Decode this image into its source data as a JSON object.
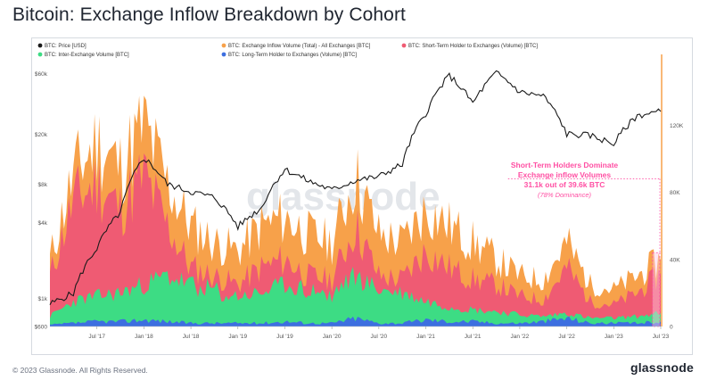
{
  "page": {
    "title": "Bitcoin: Exchange Inflow Breakdown by Cohort",
    "copyright": "© 2023 Glassnode. All Rights Reserved.",
    "brand": "glassnode",
    "watermark": "glassnode"
  },
  "colors": {
    "price": "#1a1a1a",
    "total": "#f7a14a",
    "sth": "#ef5b73",
    "inter": "#3ddc84",
    "lth": "#3d6fe0",
    "highlight": "#ff4fa3",
    "highlight_fill": "#ffc8e3"
  },
  "chart_data": {
    "type": "area",
    "title": "Bitcoin: Exchange Inflow Breakdown by Cohort",
    "legend": [
      {
        "key": "price",
        "label": "BTC: Price [USD]"
      },
      {
        "key": "total",
        "label": "BTC: Exchange Inflow Volume (Total) - All Exchanges [BTC]"
      },
      {
        "key": "sth",
        "label": "BTC: Short-Term Holder to Exchanges (Volume) [BTC]"
      },
      {
        "key": "inter",
        "label": "BTC: Inter-Exchange Volume [BTC]"
      },
      {
        "key": "lth",
        "label": "BTC: Long-Term Holder to Exchanges (Volume) [BTC]"
      }
    ],
    "x_tick_labels": [
      "Jul '17",
      "Jan '18",
      "Jul '18",
      "Jan '19",
      "Jul '19",
      "Jan '20",
      "Jul '20",
      "Jan '21",
      "Jul '21",
      "Jan '22",
      "Jul '22",
      "Jan '23",
      "Jul '23"
    ],
    "x_range": [
      "2017-01",
      "2023-08"
    ],
    "y_left": {
      "scale": "log",
      "range": [
        600,
        80000
      ],
      "ticks": [
        600,
        1000,
        4000,
        8000,
        20000,
        60000
      ],
      "tick_labels": [
        "$600",
        "$1k",
        "$4k",
        "$8k",
        "$20k",
        "$60k"
      ]
    },
    "y_right": {
      "scale": "linear",
      "range": [
        0,
        160000
      ],
      "ticks": [
        0,
        40000,
        80000,
        120000
      ],
      "tick_labels": [
        "0",
        "40K",
        "80K",
        "120K"
      ]
    },
    "x": [
      "2017-01",
      "2017-04",
      "2017-07",
      "2017-10",
      "2018-01",
      "2018-04",
      "2018-07",
      "2018-10",
      "2019-01",
      "2019-04",
      "2019-07",
      "2019-10",
      "2020-01",
      "2020-04",
      "2020-07",
      "2020-10",
      "2021-01",
      "2021-04",
      "2021-07",
      "2021-10",
      "2022-01",
      "2022-04",
      "2022-07",
      "2022-10",
      "2023-01",
      "2023-04",
      "2023-07"
    ],
    "series": [
      {
        "name": "BTC: Price [USD]",
        "key": "price",
        "axis": "left",
        "values": [
          900,
          1100,
          2500,
          4800,
          13000,
          8000,
          7000,
          6300,
          3700,
          5200,
          10500,
          8500,
          7200,
          8600,
          9200,
          11500,
          29000,
          58000,
          35000,
          61000,
          43000,
          40000,
          20000,
          19500,
          16700,
          28000,
          30200
        ]
      },
      {
        "name": "BTC: Exchange Inflow Volume (Total) - All Exchanges [BTC]",
        "key": "total",
        "axis": "right",
        "values": [
          40000,
          90000,
          110000,
          95000,
          120000,
          85000,
          60000,
          50000,
          45000,
          60000,
          65000,
          55000,
          50000,
          90000,
          55000,
          50000,
          70000,
          60000,
          50000,
          40000,
          30000,
          28000,
          50000,
          25000,
          22000,
          30000,
          39600
        ]
      },
      {
        "name": "BTC: Short-Term Holder to Exchanges (Volume) [BTC]",
        "key": "sth",
        "axis": "right",
        "values": [
          30000,
          75000,
          85000,
          70000,
          90000,
          60000,
          35000,
          30000,
          25000,
          35000,
          40000,
          30000,
          28000,
          60000,
          30000,
          28000,
          45000,
          35000,
          28000,
          25000,
          18000,
          16000,
          35000,
          15000,
          13000,
          20000,
          31100
        ]
      },
      {
        "name": "BTC: Inter-Exchange Volume [BTC]",
        "key": "inter",
        "axis": "right",
        "values": [
          6000,
          15000,
          18000,
          20000,
          25000,
          30000,
          25000,
          22000,
          18000,
          20000,
          25000,
          22000,
          20000,
          30000,
          22000,
          20000,
          15000,
          12000,
          10000,
          9000,
          7000,
          6000,
          8000,
          5000,
          5000,
          6000,
          8000
        ]
      },
      {
        "name": "BTC: Long-Term Holder to Exchanges (Volume) [BTC]",
        "key": "lth",
        "axis": "right",
        "values": [
          1000,
          2000,
          3000,
          3000,
          4000,
          3000,
          2000,
          2000,
          2000,
          2000,
          3000,
          2000,
          2000,
          5000,
          2000,
          2000,
          4000,
          3000,
          3000,
          2000,
          2000,
          3000,
          5000,
          2000,
          2000,
          2000,
          3000
        ]
      }
    ],
    "annotation": {
      "line1": "Short-Term Holders Dominate",
      "line2": "Exchange inflow Volumes",
      "line3": "31.1k out of 39.6k BTC",
      "line4": "(78% Dominance)",
      "sth_value": 31100,
      "total_value": 39600,
      "dominance_pct": 78
    }
  }
}
